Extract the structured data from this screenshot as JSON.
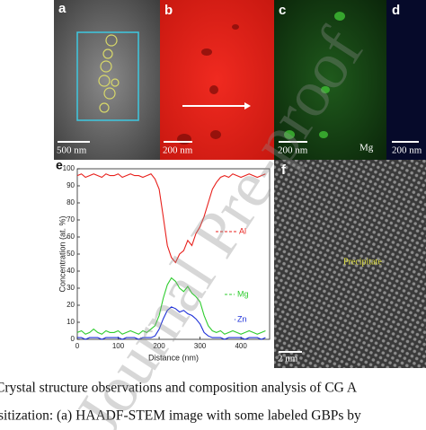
{
  "panels": [
    {
      "label": "a",
      "scale": "500 nm"
    },
    {
      "label": "b",
      "scale": "200 nm"
    },
    {
      "label": "c",
      "scale": "200 nm",
      "element": "Mg"
    },
    {
      "label": "d",
      "scale": "200 nm"
    },
    {
      "label": "f",
      "scale": "2 nm",
      "feature": "Precipitate"
    }
  ],
  "chart_data": {
    "type": "line",
    "panel": "e",
    "x_label": "Distance (nm)",
    "y_label": "Concentration (at. %)",
    "x": [
      0,
      10,
      20,
      30,
      40,
      50,
      60,
      70,
      80,
      90,
      100,
      110,
      120,
      130,
      140,
      150,
      160,
      170,
      180,
      190,
      200,
      210,
      220,
      230,
      240,
      250,
      260,
      270,
      280,
      290,
      300,
      310,
      320,
      330,
      340,
      350,
      360,
      370,
      380,
      390,
      400,
      410,
      420,
      430,
      440,
      450,
      460
    ],
    "series": [
      {
        "name": "Al",
        "color": "#e8201c",
        "values": [
          96,
          97,
          95,
          96,
          97,
          96,
          95,
          97,
          96,
          96,
          97,
          95,
          96,
          97,
          96,
          96,
          95,
          96,
          97,
          94,
          88,
          72,
          55,
          48,
          45,
          50,
          52,
          58,
          55,
          62,
          66,
          72,
          80,
          88,
          92,
          95,
          96,
          95,
          97,
          96,
          95,
          96,
          97,
          96,
          95,
          96,
          97
        ]
      },
      {
        "name": "Mg",
        "color": "#2ecc2e",
        "values": [
          4,
          5,
          3,
          4,
          6,
          4,
          3,
          5,
          4,
          4,
          5,
          3,
          4,
          5,
          4,
          3,
          5,
          4,
          6,
          8,
          14,
          24,
          32,
          36,
          34,
          30,
          28,
          31,
          27,
          25,
          22,
          14,
          8,
          5,
          4,
          5,
          3,
          4,
          5,
          4,
          3,
          4,
          5,
          4,
          3,
          4,
          5
        ]
      },
      {
        "name": "Zn",
        "color": "#1d2fd8",
        "values": [
          1,
          1,
          0,
          1,
          1,
          1,
          0,
          1,
          1,
          1,
          1,
          0,
          1,
          1,
          1,
          0,
          1,
          1,
          1,
          2,
          6,
          12,
          17,
          19,
          18,
          16,
          17,
          15,
          14,
          12,
          9,
          4,
          2,
          1,
          1,
          1,
          0,
          1,
          1,
          1,
          1,
          0,
          1,
          1,
          1,
          0,
          1
        ]
      }
    ],
    "xlim": [
      0,
      470
    ],
    "ylim": [
      0,
      100
    ],
    "xticks": [
      0,
      100,
      200,
      300,
      400
    ],
    "yticks": [
      0,
      10,
      20,
      30,
      40,
      50,
      60,
      70,
      80,
      90,
      100
    ]
  },
  "caption": [
    "Crystal structure observations and composition analysis of CG A",
    "sitization: (a) HAADF-STEM image with some labeled GBPs by"
  ],
  "watermark": "Journal Pre-proof"
}
